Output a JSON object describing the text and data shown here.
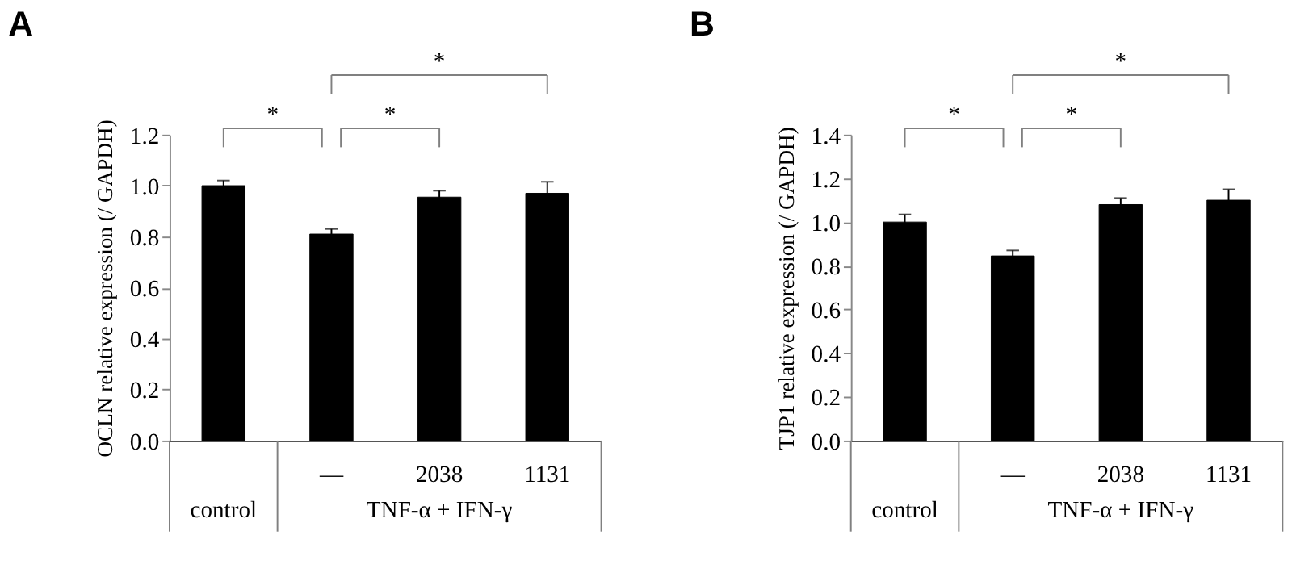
{
  "chart_data": [
    {
      "type": "bar",
      "title": "A",
      "ylabel": "OCLN relative expression (/ GAPDH)",
      "categories": [
        null,
        "—",
        "2038",
        "1131"
      ],
      "values": [
        1.0,
        0.81,
        0.955,
        0.97
      ],
      "errors": [
        0.02,
        0.02,
        0.025,
        0.045
      ],
      "color": "#000000",
      "ylim": [
        0,
        1.2
      ],
      "yticks": [
        {
          "value": 0,
          "label": "0.0"
        },
        {
          "value": 0.2,
          "label": "0.2"
        },
        {
          "value": 0.4,
          "label": "0.4"
        },
        {
          "value": 0.6,
          "label": "0.6"
        },
        {
          "value": 0.8,
          "label": "0.8"
        },
        {
          "value": 1.0,
          "label": "1.0"
        },
        {
          "value": 1.2,
          "label": "1.2"
        }
      ],
      "annotations": [
        "*",
        "*",
        "*",
        "control",
        "TNF-α + IFN-γ"
      ],
      "grid": false
    },
    {
      "type": "bar",
      "title": "B",
      "ylabel": "TJP1 relative expression (/ GAPDH)",
      "categories": [
        null,
        "—",
        "2038",
        "1131"
      ],
      "values": [
        1.0,
        0.845,
        1.08,
        1.1
      ],
      "errors": [
        0.035,
        0.025,
        0.03,
        0.05
      ],
      "color": "#000000",
      "ylim": [
        0,
        1.4
      ],
      "yticks": [
        {
          "value": 0,
          "label": "0.0"
        },
        {
          "value": 0.2,
          "label": "0.2"
        },
        {
          "value": 0.4,
          "label": "0.4"
        },
        {
          "value": 0.6,
          "label": "0.6"
        },
        {
          "value": 0.8,
          "label": "0.8"
        },
        {
          "value": 1.0,
          "label": "1.0"
        },
        {
          "value": 1.2,
          "label": "1.2"
        },
        {
          "value": 1.4,
          "label": "1.4"
        }
      ],
      "annotations": [
        "*",
        "*",
        "*",
        "control",
        "TNF-α + IFN-γ"
      ],
      "grid": false
    }
  ]
}
